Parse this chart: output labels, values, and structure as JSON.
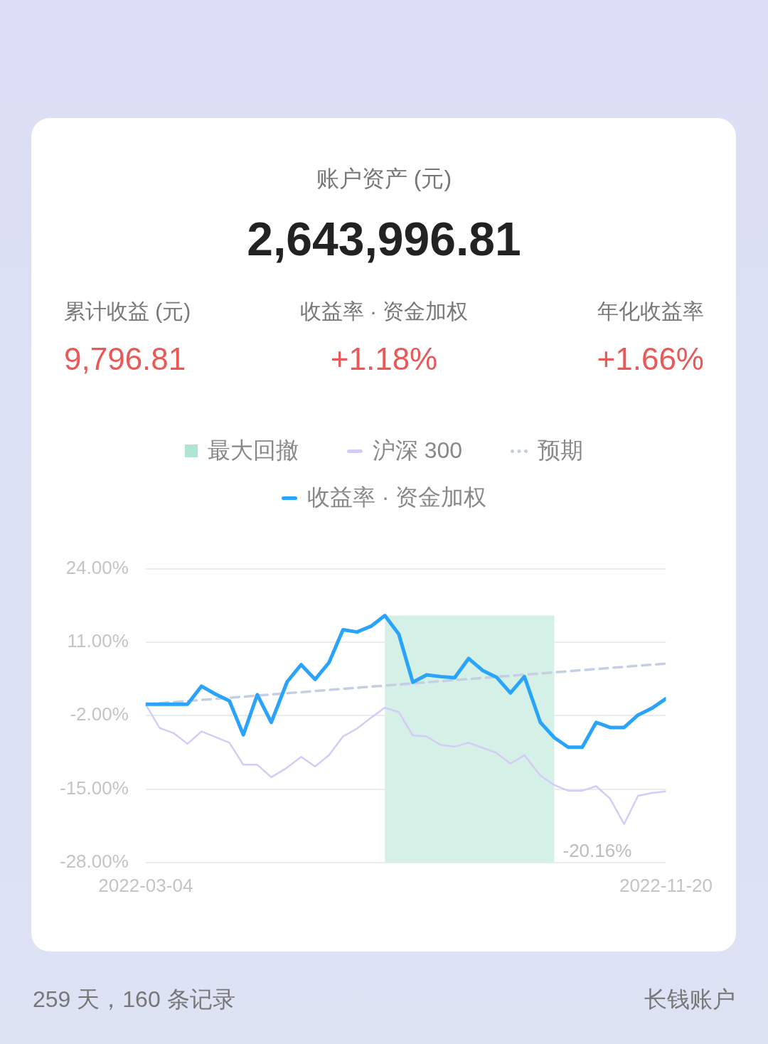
{
  "chart_data": {
    "type": "line",
    "title": "账户资产 (元)",
    "subtitle": "2,643,996.81",
    "annotations": [
      "累计收益 (元)",
      "9,796.81",
      "收益率 · 资金加权",
      "+1.18%",
      "年化收益率",
      "+1.66%",
      "-20.16%",
      "259 天，160 条记录",
      "长钱账户"
    ],
    "x": [
      "2022-03-04",
      "2022-03-11",
      "2022-03-18",
      "2022-03-25",
      "2022-04-01",
      "2022-04-08",
      "2022-04-15",
      "2022-04-22",
      "2022-04-29",
      "2022-05-06",
      "2022-05-14",
      "2022-05-21",
      "2022-05-28",
      "2022-06-04",
      "2022-06-11",
      "2022-06-18",
      "2022-06-25",
      "2022-07-02",
      "2022-07-09",
      "2022-07-16",
      "2022-07-23",
      "2022-07-30",
      "2022-08-06",
      "2022-08-13",
      "2022-08-20",
      "2022-08-27",
      "2022-09-03",
      "2022-09-10",
      "2022-09-18",
      "2022-09-25",
      "2022-10-02",
      "2022-10-09",
      "2022-10-16",
      "2022-10-23",
      "2022-10-30",
      "2022-11-06",
      "2022-11-13",
      "2022-11-20"
    ],
    "series": [
      {
        "name": "沪深 300",
        "color": "#d3ccf8",
        "values": [
          0,
          -4.2,
          -5.1,
          -7.0,
          -4.8,
          -5.8,
          -6.8,
          -10.7,
          -10.7,
          -12.9,
          -11.2,
          -9.3,
          -11.0,
          -9.0,
          -5.7,
          -4.3,
          -2.4,
          -0.6,
          -1.4,
          -5.5,
          -5.7,
          -7.2,
          -7.5,
          -6.8,
          -7.7,
          -8.6,
          -10.5,
          -9.0,
          -12.6,
          -14.3,
          -15.3,
          -15.3,
          -14.5,
          -16.7,
          -21.2,
          -16.2,
          -15.7,
          -15.4
        ]
      },
      {
        "name": "预期",
        "color": "#c5cfe4",
        "line_style": "dashed",
        "x": [
          "2022-03-04",
          "2022-11-20"
        ],
        "values": [
          0,
          7.2
        ]
      },
      {
        "name": "收益率 · 资金加权",
        "color": "#2aa3fb",
        "values": [
          0,
          0,
          0,
          0,
          3.2,
          1.8,
          0.6,
          -5.4,
          1.7,
          -3.2,
          4.0,
          7.0,
          4.4,
          7.4,
          13.2,
          12.8,
          13.8,
          15.7,
          12.4,
          3.9,
          5.2,
          4.9,
          4.7,
          8.1,
          6.0,
          4.8,
          2.0,
          4.9,
          -3.2,
          -5.9,
          -7.6,
          -7.6,
          -3.2,
          -4.1,
          -4.1,
          -1.9,
          -0.7,
          1.0
        ]
      }
    ],
    "bands": [
      {
        "axis": "x",
        "from": "2022-07-02",
        "to": "2022-09-25",
        "label": "最大回撤",
        "color": "#d5f0e6"
      }
    ],
    "xlim": [
      "2022-03-04",
      "2022-11-20"
    ],
    "xticks": [
      "2022-03-04",
      "2022-11-20"
    ],
    "ylim": [
      -28,
      24
    ],
    "yticks": [
      {
        "value": -28,
        "label": "-28.00%"
      },
      {
        "value": -15,
        "label": "-15.00%"
      },
      {
        "value": -2,
        "label": "-2.00%"
      },
      {
        "value": 11,
        "label": "11.00%"
      },
      {
        "value": 24,
        "label": "24.00%"
      }
    ],
    "grid": "y",
    "legend": "top",
    "marker": "none"
  }
}
